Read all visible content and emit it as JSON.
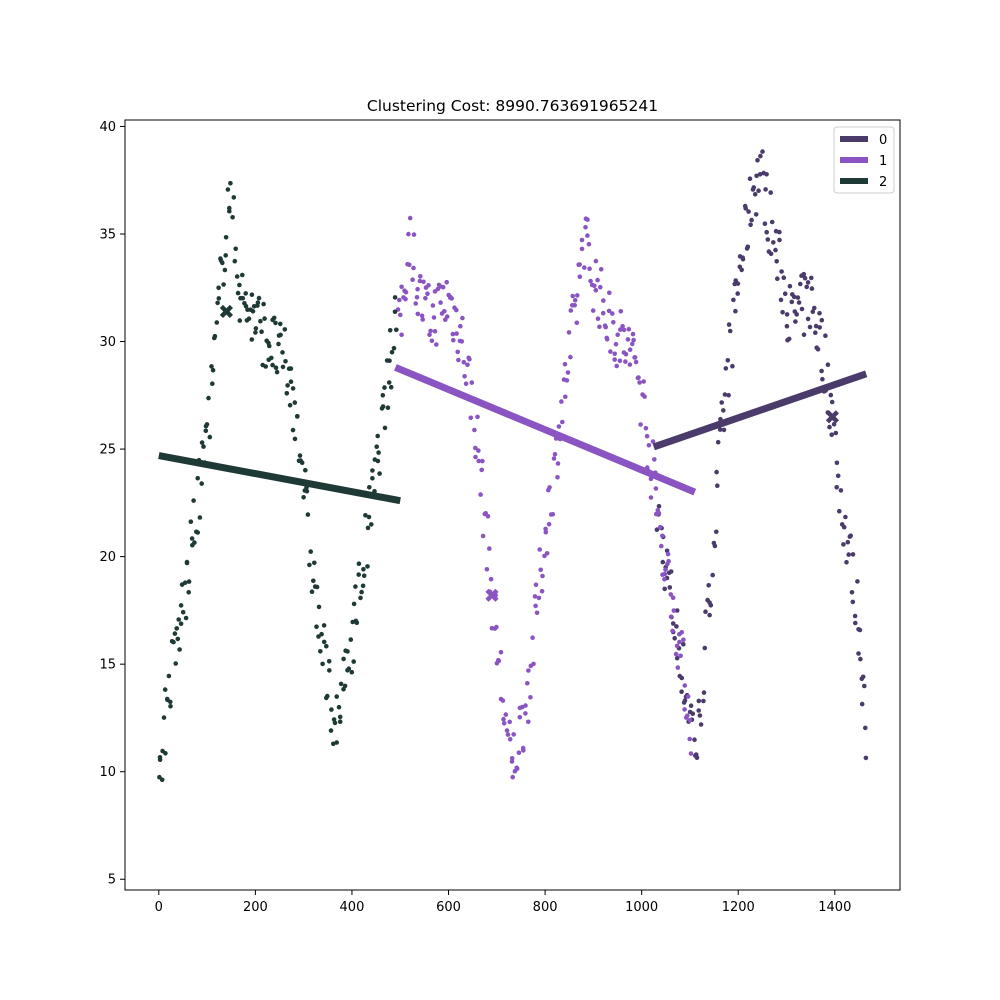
{
  "chart_data": {
    "type": "scatter",
    "title": "Clustering Cost: 8990.763691965241",
    "xlabel": "",
    "ylabel": "",
    "xlim": [
      -70,
      1535
    ],
    "ylim": [
      4.5,
      40.3
    ],
    "x_ticks": [
      0,
      200,
      400,
      600,
      800,
      1000,
      1200,
      1400
    ],
    "y_ticks": [
      5,
      10,
      15,
      20,
      25,
      30,
      35,
      40
    ],
    "grid": false,
    "legend": {
      "position": "top-right",
      "entries": [
        "0",
        "1",
        "2"
      ]
    },
    "clusters": [
      {
        "name": "0",
        "color": "#4a3b6a",
        "x_range": [
          1025,
          1465
        ],
        "regression_line": {
          "x": [
            1025,
            1465
          ],
          "y": [
            25.1,
            28.5
          ]
        },
        "centroid": {
          "x": 1395,
          "y": 26.5
        },
        "approx_points": [
          [
            1030,
            22.5
          ],
          [
            1060,
            18
          ],
          [
            1090,
            14
          ],
          [
            1115,
            11
          ],
          [
            1140,
            18
          ],
          [
            1160,
            24
          ],
          [
            1180,
            29
          ],
          [
            1200,
            33
          ],
          [
            1230,
            37
          ],
          [
            1245,
            38
          ],
          [
            1280,
            34
          ],
          [
            1310,
            31
          ],
          [
            1350,
            32
          ],
          [
            1380,
            29
          ],
          [
            1395,
            26.5
          ],
          [
            1410,
            23
          ],
          [
            1430,
            20
          ],
          [
            1450,
            17
          ],
          [
            1460,
            14
          ],
          [
            1465,
            10
          ]
        ]
      },
      {
        "name": "1",
        "color": "#8a55c2",
        "x_range": [
          490,
          1110
        ],
        "regression_line": {
          "x": [
            490,
            1110
          ],
          "y": [
            28.8,
            23
          ]
        },
        "centroid": {
          "x": 690,
          "y": 18.2
        },
        "approx_points": [
          [
            495,
            30
          ],
          [
            520,
            35
          ],
          [
            540,
            32
          ],
          [
            560,
            31
          ],
          [
            600,
            32
          ],
          [
            630,
            30
          ],
          [
            650,
            27
          ],
          [
            670,
            23
          ],
          [
            690,
            18.2
          ],
          [
            710,
            14
          ],
          [
            730,
            10
          ],
          [
            760,
            13
          ],
          [
            800,
            21
          ],
          [
            830,
            26
          ],
          [
            860,
            31
          ],
          [
            880,
            35
          ],
          [
            900,
            33
          ],
          [
            930,
            31
          ],
          [
            960,
            30
          ],
          [
            990,
            29
          ],
          [
            1010,
            26
          ],
          [
            1040,
            21
          ],
          [
            1070,
            17
          ],
          [
            1090,
            14
          ],
          [
            1105,
            12
          ]
        ]
      },
      {
        "name": "2",
        "color": "#1f3a36",
        "x_range": [
          0,
          500
        ],
        "regression_line": {
          "x": [
            0,
            500
          ],
          "y": [
            24.7,
            22.6
          ]
        },
        "centroid": {
          "x": 140,
          "y": 31.4
        },
        "approx_points": [
          [
            0,
            9
          ],
          [
            10,
            12
          ],
          [
            30,
            15
          ],
          [
            60,
            19
          ],
          [
            90,
            24
          ],
          [
            110,
            28
          ],
          [
            130,
            33
          ],
          [
            145,
            37
          ],
          [
            170,
            32
          ],
          [
            200,
            31
          ],
          [
            230,
            30
          ],
          [
            260,
            29
          ],
          [
            290,
            26
          ],
          [
            310,
            21
          ],
          [
            330,
            17
          ],
          [
            350,
            14
          ],
          [
            370,
            12
          ],
          [
            390,
            15
          ],
          [
            420,
            19
          ],
          [
            450,
            24
          ],
          [
            480,
            29
          ],
          [
            495,
            32
          ]
        ]
      }
    ]
  }
}
